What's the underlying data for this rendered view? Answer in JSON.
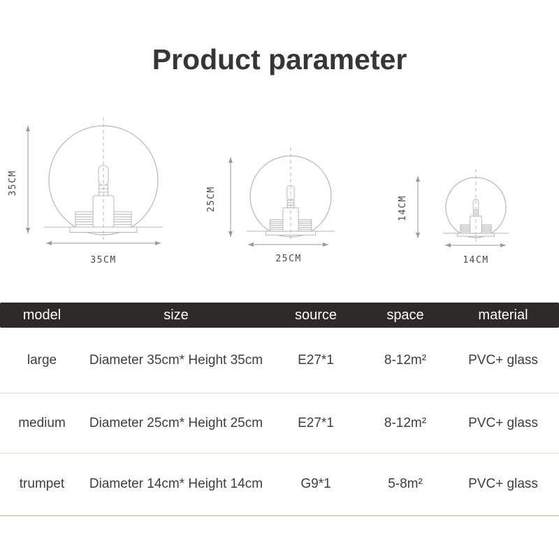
{
  "page": {
    "title": "Product parameter"
  },
  "diagrams": [
    {
      "name": "large-lamp",
      "height_label": "35CM",
      "width_label": "35CM"
    },
    {
      "name": "medium-lamp",
      "height_label": "25CM",
      "width_label": "25CM"
    },
    {
      "name": "trumpet-lamp",
      "height_label": "14CM",
      "width_label": "14CM"
    }
  ],
  "table": {
    "columns": [
      "model",
      "size",
      "source",
      "space",
      "material"
    ],
    "rows": [
      {
        "model": "large",
        "size": "Diameter 35cm* Height 35cm",
        "source": "E27*1",
        "space": "8-12m²",
        "material": "PVC+ glass"
      },
      {
        "model": "medium",
        "size": "Diameter 25cm* Height 25cm",
        "source": "E27*1",
        "space": "8-12m²",
        "material": "PVC+ glass"
      },
      {
        "model": "trumpet",
        "size": "Diameter 14cm* Height 14cm",
        "source": "G9*1",
        "space": "5-8m²",
        "material": "PVC+ glass"
      }
    ]
  },
  "colors": {
    "header_bg": "#2e2a29",
    "header_text": "#ffffff",
    "divider": "#e8e0ca",
    "drawing_line": "#b8b8b8",
    "dimension_line": "#9a9a9a",
    "body_text": "#3e3e3e"
  }
}
